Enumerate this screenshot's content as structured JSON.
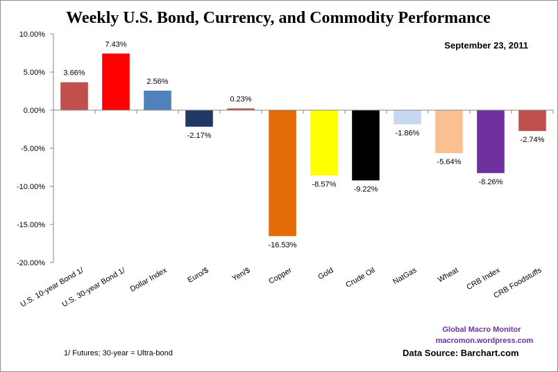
{
  "chart_data": {
    "type": "bar",
    "title": "Weekly U.S. Bond, Currency, and Commodity Performance",
    "subtitle": "September 23, 2011",
    "xlabel": "",
    "ylabel": "",
    "ylim": [
      -20,
      10
    ],
    "yticks": [
      10,
      5,
      0,
      -5,
      -10,
      -15,
      -20
    ],
    "ytick_labels": [
      "10.00%",
      "5.00%",
      "0.00%",
      "-5.00%",
      "-10.00%",
      "-15.00%",
      "-20.00%"
    ],
    "grid": false,
    "legend": "none",
    "categories": [
      "U.S. 10-year Bond 1/",
      "U.S. 30-year Bond 1/",
      "Dollar Index",
      "Euro/$",
      "Yen/$",
      "Copper",
      "Gold",
      "Crude Oil",
      "NatGas",
      "Wheat",
      "CRB Index",
      "CRB Foodstuffs"
    ],
    "values": [
      3.66,
      7.43,
      2.56,
      -2.17,
      0.23,
      -16.53,
      -8.57,
      -9.22,
      -1.86,
      -5.64,
      -8.26,
      -2.74
    ],
    "data_labels": [
      "3.66%",
      "7.43%",
      "2.56%",
      "-2.17%",
      "0.23%",
      "-16.53%",
      "-8.57%",
      "-9.22%",
      "-1.86%",
      "-5.64%",
      "-8.26%",
      "-2.74%"
    ],
    "colors": [
      "#c0504d",
      "#ff0000",
      "#4f81bd",
      "#1f3864",
      "#c0504d",
      "#e36c09",
      "#ffff00",
      "#000000",
      "#c6d9f1",
      "#fac090",
      "#7030a0",
      "#c0504d"
    ],
    "annotations": {
      "footnote": "1/ Futures; 30-year = Ultra-bond",
      "brand_name": "Global Macro Monitor",
      "brand_url": "macromon.wordpress.com",
      "source": "Data Source:  Barchart.com"
    }
  }
}
